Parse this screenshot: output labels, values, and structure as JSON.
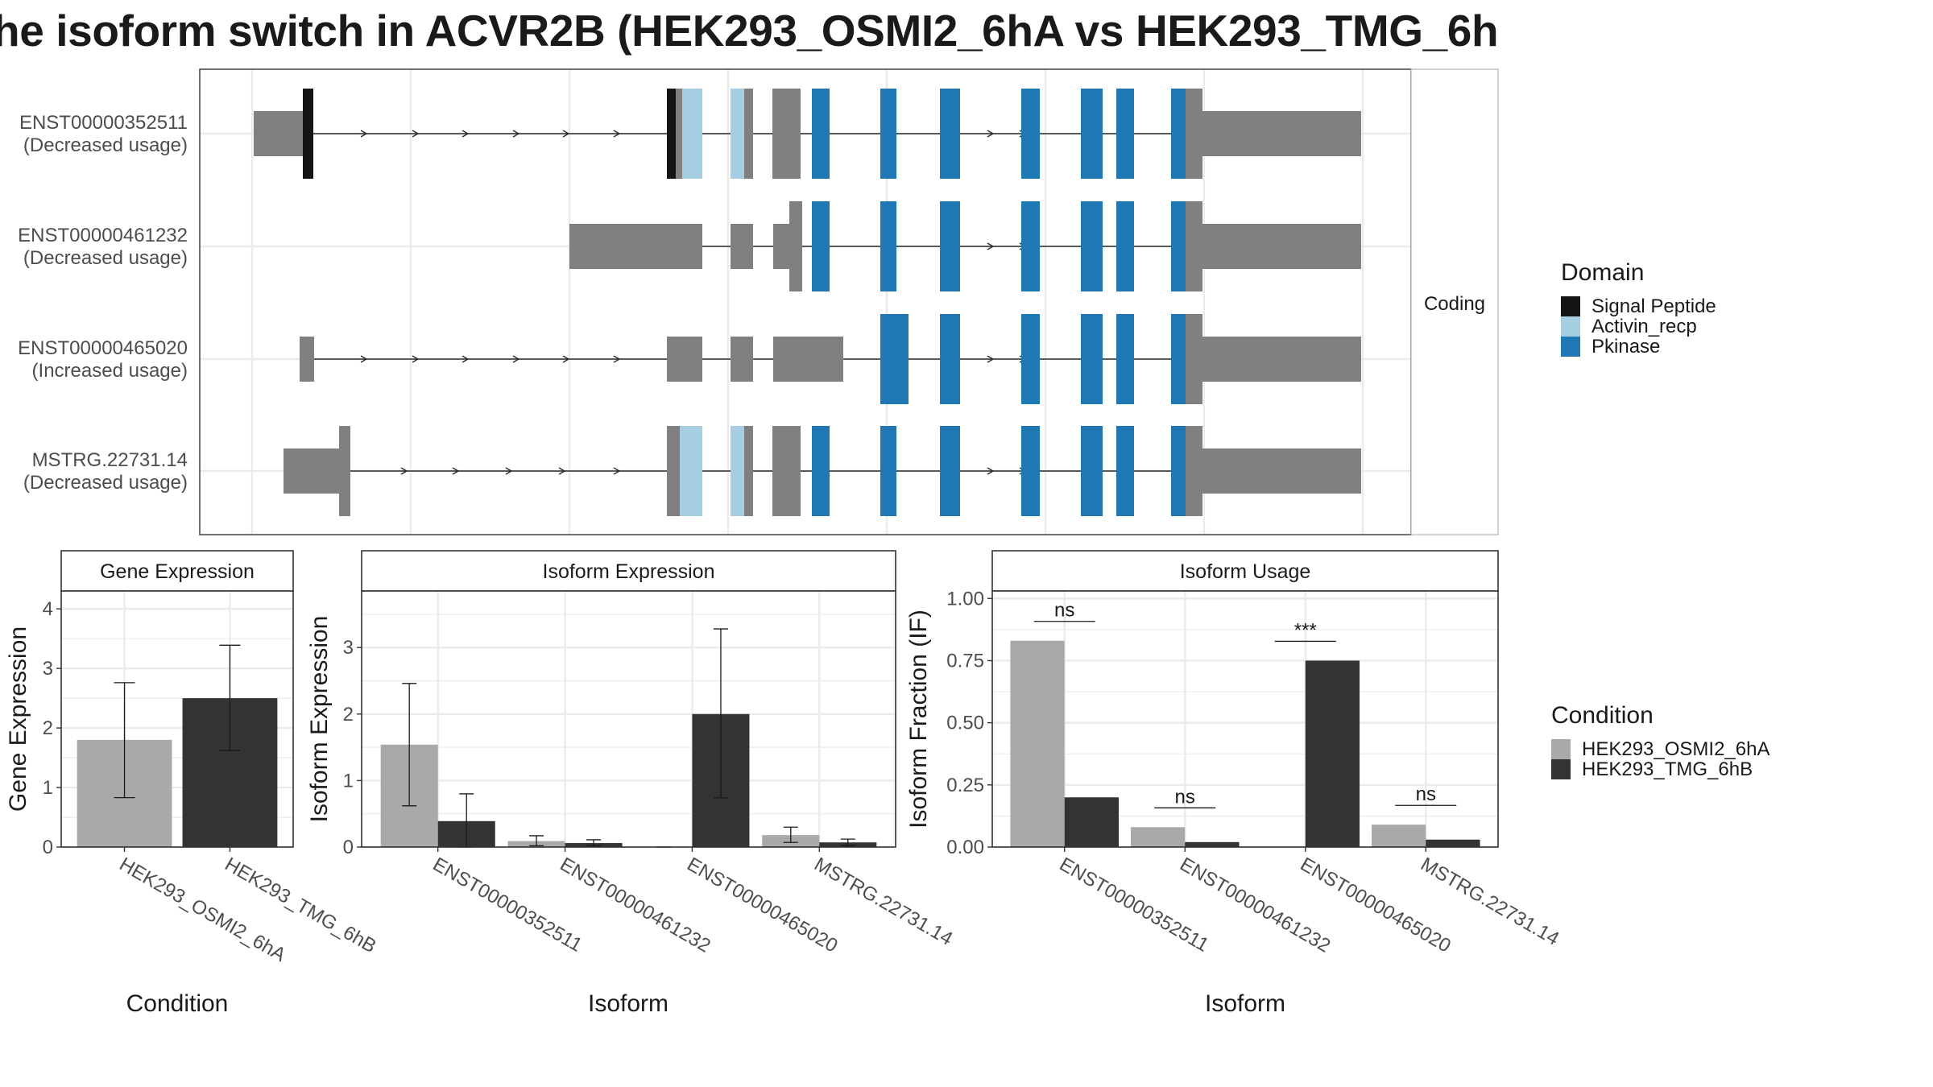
{
  "title": "he isoform switch in ACVR2B (HEK293_OSMI2_6hA vs HEK293_TMG_6h",
  "colors": {
    "signal_peptide": "#151515",
    "activin_recp": "#a6cee3",
    "pkinase": "#1f78b4",
    "exon": "#808080",
    "cond_a": "#a9a9a9",
    "cond_b": "#333333",
    "grid": "#ebebeb",
    "strip": "#ffffff"
  },
  "chart_data": [
    {
      "type": "transcript-structure",
      "strip_label": "Coding",
      "legend": {
        "title": "Domain",
        "items": [
          {
            "name": "Signal Peptide",
            "color_key": "signal_peptide"
          },
          {
            "name": "Activin_recp",
            "color_key": "activin_recp"
          },
          {
            "name": "Pkinase",
            "color_key": "pkinase"
          }
        ]
      },
      "transcripts": [
        {
          "id": "ENST00000352511",
          "usage": "(Decreased usage)"
        },
        {
          "id": "ENST00000461232",
          "usage": "(Decreased usage)"
        },
        {
          "id": "ENST00000465020",
          "usage": "(Increased usage)"
        },
        {
          "id": "MSTRG.22731.14",
          "usage": "(Decreased usage)"
        }
      ]
    },
    {
      "type": "bar",
      "title": "Gene Expression",
      "xlabel": "Condition",
      "ylabel": "Gene Expression",
      "ylim": [
        0,
        4.3
      ],
      "yticks": [
        "0",
        "1",
        "2",
        "3",
        "4"
      ],
      "categories": [
        "HEK293_OSMI2_6hA",
        "HEK293_TMG_6hB"
      ],
      "values": [
        1.8,
        2.5
      ],
      "error_low": [
        0.83,
        1.62
      ],
      "error_high": [
        2.76,
        3.39
      ]
    },
    {
      "type": "bar",
      "title": "Isoform Expression",
      "xlabel": "Isoform",
      "ylabel": "Isoform Expression",
      "ylim": [
        0,
        3.85
      ],
      "yticks": [
        "0",
        "1",
        "2",
        "3"
      ],
      "categories": [
        "ENST00000352511",
        "ENST00000461232",
        "ENST00000465020",
        "MSTRG.22731.14"
      ],
      "series": [
        {
          "name": "HEK293_OSMI2_6hA",
          "values": [
            1.54,
            0.09,
            0.0,
            0.18
          ],
          "error_low": [
            0.62,
            0.02,
            0.0,
            0.07
          ],
          "error_high": [
            2.46,
            0.17,
            0.0,
            0.3
          ]
        },
        {
          "name": "HEK293_TMG_6hB",
          "values": [
            0.39,
            0.06,
            2.0,
            0.07
          ],
          "error_low": [
            0.0,
            0.02,
            0.74,
            0.02
          ],
          "error_high": [
            0.8,
            0.11,
            3.28,
            0.12
          ]
        }
      ]
    },
    {
      "type": "bar",
      "title": "Isoform Usage",
      "xlabel": "Isoform",
      "ylabel": "Isoform Fraction (IF)",
      "ylim": [
        0,
        1.03
      ],
      "yticks": [
        "0.00",
        "0.25",
        "0.50",
        "0.75",
        "1.00"
      ],
      "categories": [
        "ENST00000352511",
        "ENST00000461232",
        "ENST00000465020",
        "MSTRG.22731.14"
      ],
      "series": [
        {
          "name": "HEK293_OSMI2_6hA",
          "values": [
            0.83,
            0.08,
            0.0,
            0.09
          ]
        },
        {
          "name": "HEK293_TMG_6hB",
          "values": [
            0.2,
            0.02,
            0.75,
            0.03
          ]
        }
      ],
      "significance": [
        "ns",
        "ns",
        "***",
        "ns"
      ],
      "legend": {
        "title": "Condition",
        "items": [
          "HEK293_OSMI2_6hA",
          "HEK293_TMG_6hB"
        ]
      }
    }
  ]
}
